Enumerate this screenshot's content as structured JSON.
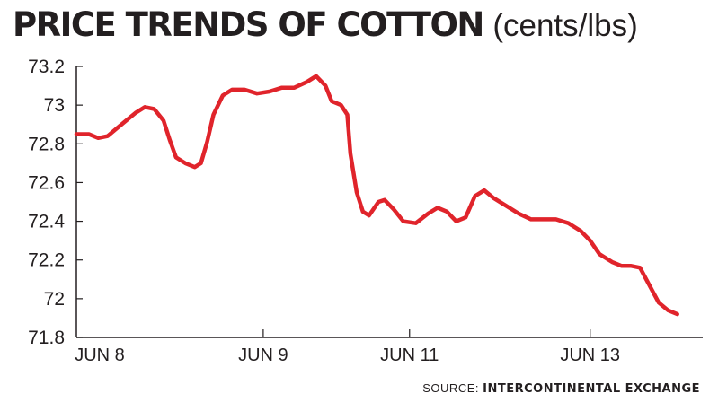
{
  "chart_data": {
    "type": "line",
    "title": "PRICE TRENDS OF COTTON",
    "unit": "(cents/lbs)",
    "ylim": [
      71.8,
      73.2
    ],
    "yticks": [
      "73.2",
      "73",
      "72.8",
      "72.6",
      "72.4",
      "72.2",
      "72",
      "71.8"
    ],
    "xticks": [
      {
        "label": "JUN 8",
        "t": 0.0
      },
      {
        "label": "JUN 9",
        "t": 0.3
      },
      {
        "label": "JUN 11",
        "t": 0.535
      },
      {
        "label": "JUN 13",
        "t": 0.825
      }
    ],
    "grid": false,
    "series": [
      {
        "color": "#e0242b",
        "points": [
          [
            0.0,
            72.85
          ],
          [
            0.02,
            72.85
          ],
          [
            0.035,
            72.83
          ],
          [
            0.05,
            72.84
          ],
          [
            0.065,
            72.88
          ],
          [
            0.08,
            72.92
          ],
          [
            0.095,
            72.96
          ],
          [
            0.11,
            72.99
          ],
          [
            0.125,
            72.98
          ],
          [
            0.14,
            72.92
          ],
          [
            0.15,
            72.82
          ],
          [
            0.16,
            72.73
          ],
          [
            0.175,
            72.7
          ],
          [
            0.19,
            72.68
          ],
          [
            0.2,
            72.7
          ],
          [
            0.21,
            72.81
          ],
          [
            0.22,
            72.95
          ],
          [
            0.235,
            73.05
          ],
          [
            0.25,
            73.08
          ],
          [
            0.27,
            73.08
          ],
          [
            0.29,
            73.06
          ],
          [
            0.31,
            73.07
          ],
          [
            0.33,
            73.09
          ],
          [
            0.35,
            73.09
          ],
          [
            0.37,
            73.12
          ],
          [
            0.385,
            73.15
          ],
          [
            0.4,
            73.1
          ],
          [
            0.41,
            73.02
          ],
          [
            0.425,
            73.0
          ],
          [
            0.435,
            72.95
          ],
          [
            0.44,
            72.75
          ],
          [
            0.45,
            72.55
          ],
          [
            0.46,
            72.45
          ],
          [
            0.47,
            72.43
          ],
          [
            0.485,
            72.5
          ],
          [
            0.495,
            72.51
          ],
          [
            0.51,
            72.46
          ],
          [
            0.525,
            72.4
          ],
          [
            0.545,
            72.39
          ],
          [
            0.565,
            72.44
          ],
          [
            0.58,
            72.47
          ],
          [
            0.595,
            72.45
          ],
          [
            0.61,
            72.4
          ],
          [
            0.625,
            72.42
          ],
          [
            0.64,
            72.53
          ],
          [
            0.655,
            72.56
          ],
          [
            0.67,
            72.52
          ],
          [
            0.69,
            72.48
          ],
          [
            0.71,
            72.44
          ],
          [
            0.73,
            72.41
          ],
          [
            0.75,
            72.41
          ],
          [
            0.77,
            72.41
          ],
          [
            0.79,
            72.39
          ],
          [
            0.81,
            72.35
          ],
          [
            0.825,
            72.3
          ],
          [
            0.84,
            72.23
          ],
          [
            0.86,
            72.19
          ],
          [
            0.875,
            72.17
          ],
          [
            0.89,
            72.17
          ],
          [
            0.905,
            72.16
          ],
          [
            0.92,
            72.07
          ],
          [
            0.935,
            71.98
          ],
          [
            0.95,
            71.94
          ],
          [
            0.965,
            71.92
          ]
        ]
      }
    ]
  },
  "source": {
    "prefix": "SOURCE:",
    "name": "INTERCONTINENTAL EXCHANGE"
  }
}
